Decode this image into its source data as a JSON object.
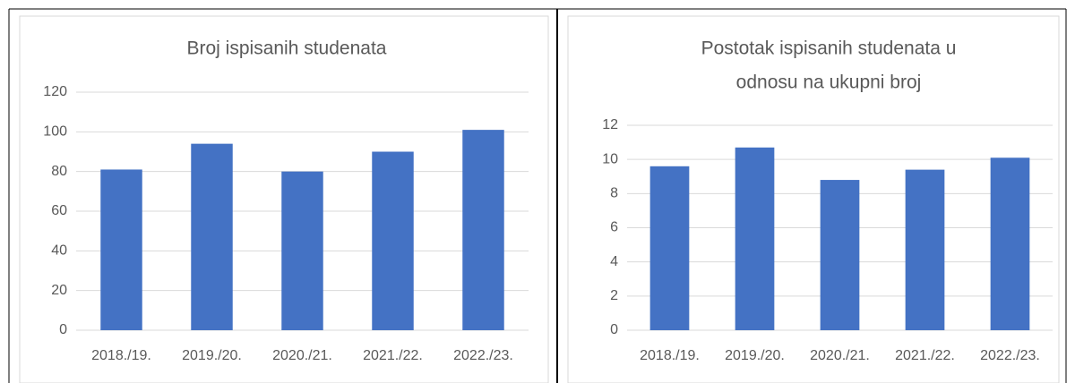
{
  "chart_data": [
    {
      "type": "bar",
      "title": [
        "Broj ispisanih studenata"
      ],
      "categories": [
        "2018./19.",
        "2019./20.",
        "2020./21.",
        "2021./22.",
        "2022./23."
      ],
      "values": [
        81,
        94,
        80,
        90,
        101
      ],
      "color": "#4472c4",
      "ylim": [
        0,
        120
      ],
      "yticks": [
        0,
        20,
        40,
        60,
        80,
        100,
        120
      ],
      "grid": true
    },
    {
      "type": "bar",
      "title": [
        "Postotak ispisanih studenata u",
        "odnosu na ukupni broj"
      ],
      "categories": [
        "2018./19.",
        "2019./20.",
        "2020./21.",
        "2021./22.",
        "2022./23."
      ],
      "values": [
        9.6,
        10.7,
        8.8,
        9.4,
        10.1
      ],
      "color": "#4472c4",
      "ylim": [
        0,
        12
      ],
      "yticks": [
        0,
        2,
        4,
        6,
        8,
        10,
        12
      ],
      "grid": true
    }
  ]
}
